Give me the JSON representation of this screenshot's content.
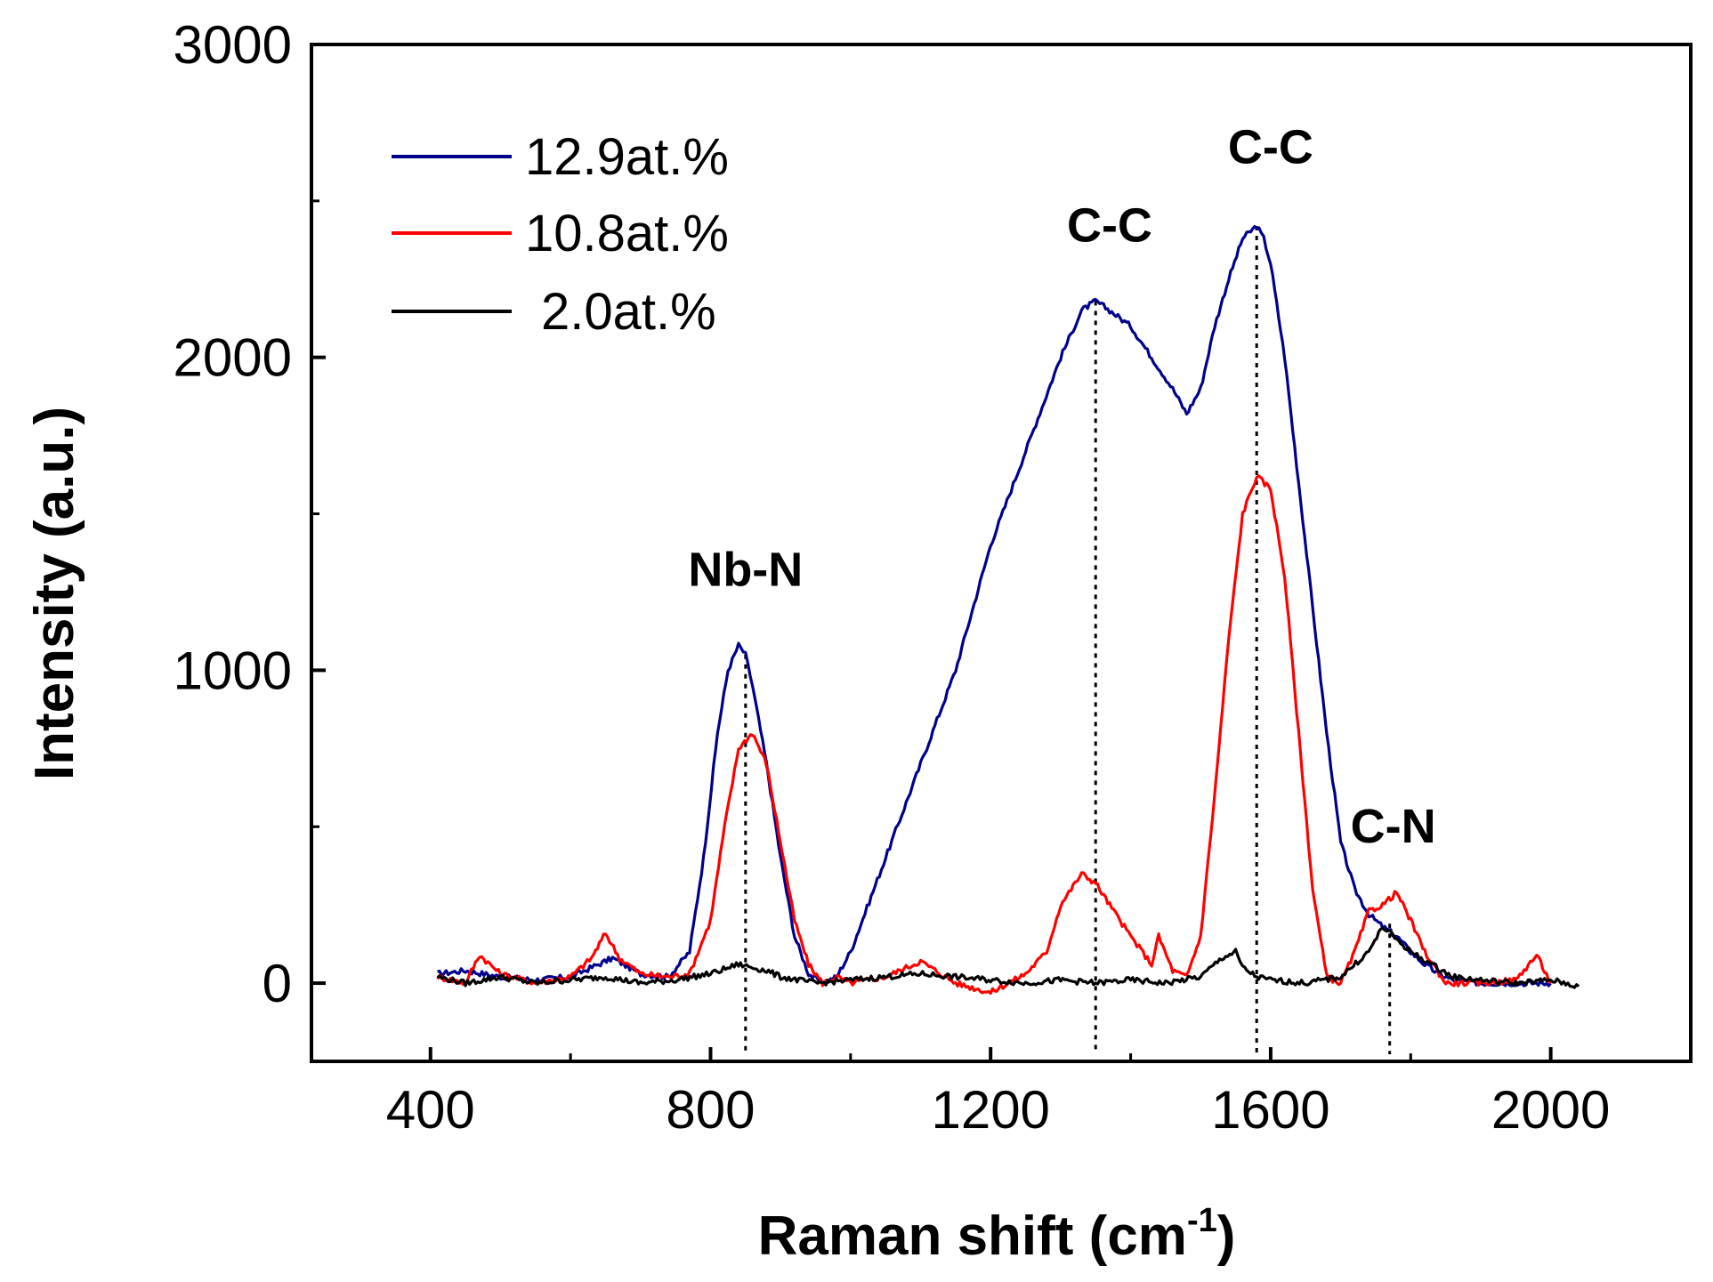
{
  "chart_data": {
    "type": "line",
    "title": "",
    "xlabel": "Raman shift (cm",
    "xlabel_sup": "-1",
    "xlabel_close": ")",
    "ylabel": "Intensity (a.u.)",
    "xlim": [
      230,
      2200
    ],
    "ylim": [
      -250,
      3000
    ],
    "xticks": [
      400,
      800,
      1200,
      1600,
      2000
    ],
    "xtick_labels": [
      "400",
      "800",
      "1200",
      "1600",
      "2000"
    ],
    "yticks": [
      0,
      1000,
      2000,
      3000
    ],
    "ytick_labels": [
      "0",
      "1000",
      "2000",
      "3000"
    ],
    "grid": false,
    "legend_position": "top-left",
    "series": [
      {
        "name": "12.9at.%",
        "color": "#00008b",
        "x": [
          410,
          450,
          500,
          550,
          600,
          640,
          660,
          700,
          740,
          770,
          790,
          810,
          825,
          840,
          850,
          860,
          880,
          900,
          920,
          940,
          960,
          980,
          1000,
          1050,
          1100,
          1150,
          1200,
          1250,
          1300,
          1330,
          1350,
          1370,
          1400,
          1430,
          1460,
          1480,
          1500,
          1520,
          1540,
          1560,
          1580,
          1590,
          1600,
          1620,
          1640,
          1660,
          1680,
          1700,
          1720,
          1740,
          1760,
          1780,
          1800,
          1820,
          1840,
          1860,
          1900,
          1950,
          2000
        ],
        "y": [
          30,
          40,
          20,
          10,
          20,
          60,
          80,
          30,
          20,
          100,
          400,
          800,
          1000,
          1080,
          1050,
          950,
          700,
          400,
          150,
          30,
          0,
          20,
          100,
          400,
          700,
          1000,
          1400,
          1700,
          2000,
          2150,
          2180,
          2150,
          2100,
          2000,
          1900,
          1820,
          1900,
          2100,
          2250,
          2380,
          2420,
          2380,
          2300,
          2000,
          1600,
          1200,
          800,
          450,
          300,
          220,
          180,
          150,
          100,
          60,
          30,
          10,
          0,
          0,
          0
        ]
      },
      {
        "name": "10.8at.%",
        "color": "#ff0000",
        "x": [
          410,
          450,
          470,
          500,
          550,
          600,
          630,
          650,
          670,
          700,
          740,
          770,
          800,
          820,
          840,
          860,
          880,
          900,
          920,
          940,
          960,
          980,
          1000,
          1050,
          1100,
          1150,
          1200,
          1250,
          1280,
          1300,
          1330,
          1350,
          1370,
          1400,
          1430,
          1440,
          1460,
          1480,
          1500,
          1520,
          1540,
          1560,
          1580,
          1600,
          1620,
          1640,
          1660,
          1680,
          1700,
          1720,
          1740,
          1760,
          1780,
          1800,
          1820,
          1850,
          1900,
          1950,
          1980,
          2000
        ],
        "y": [
          20,
          0,
          90,
          30,
          0,
          20,
          80,
          160,
          80,
          30,
          20,
          30,
          200,
          500,
          750,
          800,
          700,
          450,
          200,
          60,
          0,
          20,
          0,
          20,
          70,
          0,
          -30,
          30,
          100,
          250,
          350,
          320,
          250,
          150,
          60,
          150,
          40,
          20,
          150,
          600,
          1100,
          1500,
          1620,
          1580,
          1300,
          800,
          300,
          20,
          0,
          100,
          230,
          250,
          290,
          200,
          100,
          0,
          0,
          10,
          90,
          0
        ]
      },
      {
        "name": "2.0at.%",
        "color": "#000000",
        "x": [
          410,
          450,
          500,
          550,
          600,
          650,
          700,
          750,
          800,
          840,
          860,
          880,
          900,
          950,
          1000,
          1050,
          1100,
          1150,
          1200,
          1250,
          1300,
          1350,
          1400,
          1450,
          1500,
          1530,
          1550,
          1560,
          1580,
          1600,
          1650,
          1700,
          1740,
          1760,
          1780,
          1800,
          1830,
          1860,
          1900,
          1950,
          2000,
          2040
        ],
        "y": [
          20,
          0,
          20,
          0,
          10,
          20,
          0,
          10,
          30,
          60,
          50,
          40,
          20,
          0,
          10,
          20,
          30,
          20,
          10,
          0,
          10,
          0,
          10,
          0,
          20,
          80,
          100,
          50,
          20,
          10,
          0,
          20,
          100,
          180,
          140,
          100,
          60,
          20,
          10,
          0,
          10,
          -10
        ]
      }
    ],
    "reference_lines": [
      {
        "x": 850,
        "y_top": 1050
      },
      {
        "x": 1350,
        "y_top": 2180
      },
      {
        "x": 1580,
        "y_top": 2420
      },
      {
        "x": 1770,
        "y_top": 190
      }
    ],
    "annotations": [
      {
        "text": "Nb-N",
        "x": 850,
        "y": 1270
      },
      {
        "text": "C-C",
        "x": 1370,
        "y": 2370
      },
      {
        "text": "C-C",
        "x": 1600,
        "y": 2620
      },
      {
        "text": "C-N",
        "x": 1775,
        "y": 450
      }
    ]
  }
}
